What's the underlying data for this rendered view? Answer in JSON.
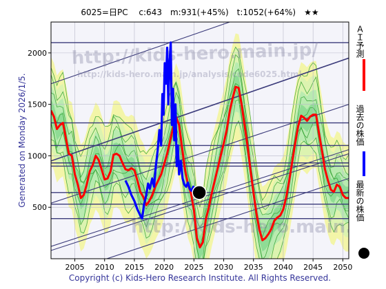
{
  "chart_data": {
    "type": "line",
    "title": "6025=日PC　 c:643　m:931(+45%)　t:1052(+64%)　★★",
    "side_label": "Generated on Monday 2026/1/5.",
    "footer": "Copyright (c) Kids-Hero Research Institute. All Rights Reserved.",
    "watermark": "http://kids-hero.main.jp/",
    "watermark_small": "http://kids-hero.main.jp/analysis/code6025.html",
    "xlim": [
      2001,
      2051
    ],
    "ylim": [
      0,
      2300
    ],
    "xticks": [
      2005,
      2010,
      2015,
      2020,
      2025,
      2030,
      2035,
      2040,
      2045,
      2050
    ],
    "yticks": [
      500,
      1000,
      1500,
      2000
    ],
    "grid": true,
    "legend_position": "right",
    "legend": [
      {
        "label": "ＡＩ予測",
        "color": "#ff0000"
      },
      {
        "label": "過去の株価",
        "color": "#0000ff"
      },
      {
        "label": "最新の株価",
        "color": "#000000"
      }
    ],
    "horizontal_lines": [
      2100,
      1320,
      1100,
      931,
      900,
      643,
      530,
      390
    ],
    "trend_lines": [
      {
        "x": [
          2001,
          2051
        ],
        "y": [
          1700,
          2700
        ]
      },
      {
        "x": [
          2001,
          2051
        ],
        "y": [
          950,
          1950
        ]
      },
      {
        "x": [
          2001,
          2051
        ],
        "y": [
          540,
          1500
        ]
      },
      {
        "x": [
          2001,
          2051
        ],
        "y": [
          80,
          1020
        ]
      },
      {
        "x": [
          2001,
          2051
        ],
        "y": [
          120,
          1060
        ]
      },
      {
        "x": [
          2001,
          2051
        ],
        "y": [
          -180,
          780
        ]
      }
    ],
    "latest_point": {
      "x": 2025.9,
      "y": 643
    },
    "series": [
      {
        "name": "ＡＩ予測",
        "color": "#ff0000",
        "x": [
          2001,
          2001.5,
          2002,
          2002.5,
          2003,
          2003.5,
          2004,
          2004.5,
          2005,
          2005.5,
          2006,
          2006.5,
          2007,
          2007.5,
          2008,
          2008.5,
          2009,
          2009.5,
          2010,
          2010.5,
          2011,
          2011.5,
          2012,
          2012.5,
          2013,
          2013.5,
          2014,
          2014.5,
          2015,
          2015.5,
          2016,
          2016.5,
          2017,
          2017.5,
          2018,
          2018.5,
          2019,
          2019.5,
          2020,
          2020.5,
          2021,
          2021.5,
          2022,
          2022.5,
          2023,
          2023.5,
          2024,
          2024.5,
          2025,
          2025.5,
          2026,
          2026.5,
          2027,
          2027.5,
          2028,
          2028.5,
          2029,
          2029.5,
          2030,
          2030.5,
          2031,
          2031.5,
          2032,
          2032.5,
          2033,
          2033.5,
          2034,
          2034.5,
          2035,
          2035.5,
          2036,
          2036.5,
          2037,
          2037.5,
          2038,
          2038.5,
          2039,
          2039.5,
          2040,
          2040.5,
          2041,
          2041.5,
          2042,
          2042.5,
          2043,
          2043.5,
          2044,
          2044.5,
          2045,
          2045.5,
          2046,
          2046.5,
          2047,
          2047.5,
          2048,
          2048.5,
          2049,
          2049.5,
          2050,
          2050.5,
          2051
        ],
        "values": [
          1440,
          1380,
          1260,
          1300,
          1320,
          1170,
          1020,
          1000,
          820,
          720,
          590,
          620,
          720,
          850,
          910,
          1000,
          960,
          870,
          770,
          780,
          850,
          1010,
          1020,
          1000,
          930,
          870,
          860,
          880,
          860,
          760,
          650,
          600,
          520,
          560,
          620,
          700,
          760,
          820,
          920,
          1020,
          1150,
          1270,
          1380,
          1300,
          1080,
          870,
          720,
          640,
          470,
          200,
          110,
          160,
          380,
          500,
          640,
          760,
          880,
          1000,
          1120,
          1250,
          1430,
          1560,
          1670,
          1660,
          1500,
          1300,
          1100,
          860,
          640,
          440,
          280,
          180,
          200,
          240,
          290,
          370,
          400,
          420,
          480,
          600,
          760,
          940,
          1120,
          1290,
          1390,
          1370,
          1340,
          1380,
          1400,
          1400,
          1220,
          1050,
          870,
          760,
          670,
          650,
          720,
          700,
          620,
          590,
          590
        ]
      },
      {
        "name": "過去の株価",
        "color": "#0000ff",
        "x": [
          2013.5,
          2014,
          2014.5,
          2015,
          2015.5,
          2016,
          2016.3,
          2016.6,
          2017,
          2017.3,
          2017.6,
          2018,
          2018.3,
          2018.6,
          2018.9,
          2019.2,
          2019.5,
          2019.7,
          2019.9,
          2020.1,
          2020.3,
          2020.5,
          2020.7,
          2020.9,
          2021.1,
          2021.3,
          2021.5,
          2021.7,
          2021.9,
          2022.1,
          2022.3,
          2022.5,
          2022.8,
          2023.1,
          2023.4,
          2023.7,
          2024,
          2024.3,
          2024.6,
          2024.9,
          2025.2,
          2025.5
        ],
        "values": [
          760,
          700,
          620,
          560,
          480,
          420,
          390,
          520,
          620,
          730,
          680,
          780,
          700,
          900,
          1050,
          1250,
          1100,
          1600,
          1400,
          1900,
          1700,
          2050,
          1500,
          1900,
          2100,
          1300,
          1650,
          1150,
          1500,
          900,
          1100,
          820,
          950,
          780,
          720,
          700,
          740,
          680,
          660,
          700,
          640,
          643
        ]
      }
    ]
  }
}
